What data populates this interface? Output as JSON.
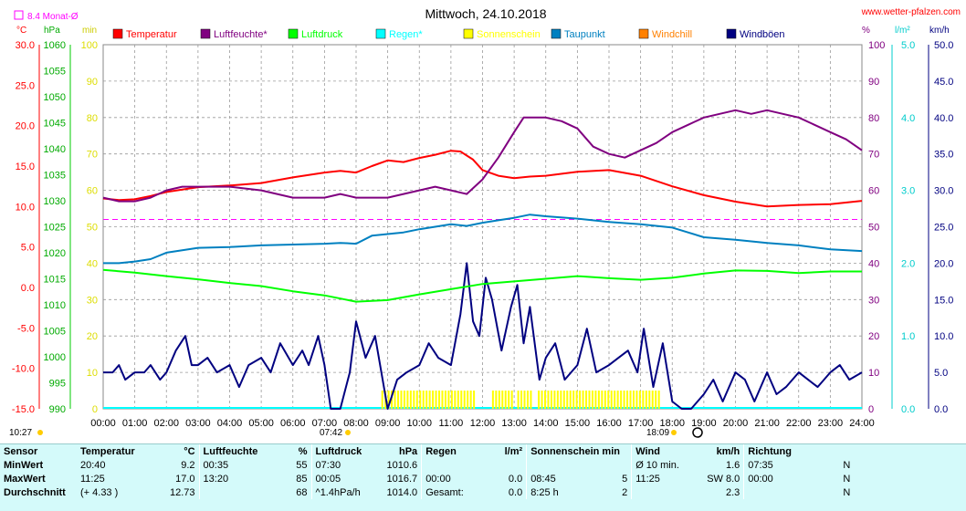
{
  "title": "Mittwoch, 24.10.2018",
  "website": "www.wetter-pfalzen.com",
  "avg_label": "8.4 Monat-Ø",
  "units": {
    "celsius": "°C",
    "hpa": "hPa",
    "min": "min",
    "percent": "%",
    "lm2": "l/m²",
    "kmh": "km/h"
  },
  "times": {
    "sunrise": "07:42",
    "sunset": "18:09",
    "first": "10:27"
  },
  "legend": [
    {
      "name": "Temperatur",
      "color": "#ff0000"
    },
    {
      "name": "Luftfeuchte*",
      "color": "#800080"
    },
    {
      "name": "Luftdruck",
      "color": "#00ff00"
    },
    {
      "name": "Regen*",
      "color": "#00ffff"
    },
    {
      "name": "Sonnenschein",
      "color": "#ffff00"
    },
    {
      "name": "Taupunkt",
      "color": "#0080c0"
    },
    {
      "name": "Windchill",
      "color": "#ff8000"
    },
    {
      "name": "Windböen",
      "color": "#000080"
    }
  ],
  "chart_data": {
    "type": "line",
    "title": "Mittwoch, 24.10.2018",
    "x_ticks": [
      "00:00",
      "01:00",
      "02:00",
      "03:00",
      "04:00",
      "05:00",
      "06:00",
      "07:00",
      "08:00",
      "09:00",
      "10:00",
      "11:00",
      "12:00",
      "13:00",
      "14:00",
      "15:00",
      "16:00",
      "17:00",
      "18:00",
      "19:00",
      "20:00",
      "21:00",
      "22:00",
      "23:00",
      "24:00"
    ],
    "axes": {
      "temperature": {
        "label": "°C",
        "range": [
          -15,
          30
        ],
        "ticks": [
          "30.0",
          "25.0",
          "20.0",
          "15.0",
          "10.0",
          "5.0",
          "0.0",
          "-5.0",
          "-10.0",
          "-15.0"
        ]
      },
      "pressure": {
        "label": "hPa",
        "range": [
          990,
          1060
        ],
        "ticks": [
          "1060",
          "1055",
          "1050",
          "1045",
          "1040",
          "1035",
          "1030",
          "1025",
          "1020",
          "1015",
          "1010",
          "1005",
          "1000",
          "995",
          "990"
        ]
      },
      "sunshine": {
        "label": "min",
        "range": [
          0,
          100
        ],
        "ticks": [
          "100",
          "90",
          "80",
          "70",
          "60",
          "50",
          "40",
          "30",
          "20",
          "10",
          "0"
        ]
      },
      "humidity": {
        "label": "%",
        "range": [
          0,
          100
        ],
        "ticks": [
          "100",
          "90",
          "80",
          "70",
          "60",
          "50",
          "40",
          "30",
          "20",
          "10",
          "0"
        ]
      },
      "rain": {
        "label": "l/m²",
        "range": [
          0,
          5
        ],
        "ticks": [
          "5.0",
          "4.0",
          "3.0",
          "2.0",
          "1.0",
          "0.0"
        ]
      },
      "wind": {
        "label": "km/h",
        "range": [
          0,
          50
        ],
        "ticks": [
          "50.0",
          "45.0",
          "40.0",
          "35.0",
          "30.0",
          "25.0",
          "20.0",
          "15.0",
          "10.0",
          "5.0",
          "0.0"
        ]
      }
    },
    "monthly_avg_temp": 8.4,
    "series": [
      {
        "name": "Temperatur",
        "color": "#ff0000",
        "axis": "temperature",
        "x": [
          0,
          0.5,
          1,
          1.5,
          2,
          3,
          4,
          5,
          6,
          7,
          7.5,
          8,
          8.5,
          9,
          9.5,
          10,
          10.5,
          11,
          11.3,
          11.7,
          12,
          12.5,
          13,
          13.5,
          14,
          15,
          16,
          17,
          18,
          19,
          20,
          21,
          22,
          23,
          24
        ],
        "y": [
          11.0,
          10.8,
          10.9,
          11.3,
          11.8,
          12.4,
          12.6,
          12.9,
          13.6,
          14.2,
          14.4,
          14.2,
          15.0,
          15.7,
          15.5,
          16.0,
          16.4,
          16.9,
          16.8,
          15.8,
          14.5,
          13.8,
          13.5,
          13.7,
          13.8,
          14.3,
          14.5,
          13.8,
          12.5,
          11.4,
          10.6,
          10.0,
          10.2,
          10.3,
          10.7
        ]
      },
      {
        "name": "Luftfeuchte*",
        "color": "#800080",
        "axis": "humidity",
        "x": [
          0,
          0.5,
          1,
          1.5,
          2,
          2.5,
          3,
          4,
          5,
          6,
          7,
          7.5,
          8,
          8.5,
          9,
          10,
          10.5,
          11,
          11.5,
          12,
          12.5,
          13,
          13.3,
          13.7,
          14,
          14.5,
          15,
          15.5,
          16,
          16.5,
          17,
          17.5,
          18,
          18.5,
          19,
          19.5,
          20,
          20.5,
          21,
          21.5,
          22,
          22.5,
          23,
          23.5,
          24
        ],
        "y": [
          58,
          57,
          57,
          58,
          60,
          61,
          61,
          61,
          60,
          58,
          58,
          59,
          58,
          58,
          58,
          60,
          61,
          60,
          59,
          63,
          69,
          76,
          80,
          80,
          80,
          79,
          77,
          72,
          70,
          69,
          71,
          73,
          76,
          78,
          80,
          81,
          82,
          81,
          82,
          81,
          80,
          78,
          76,
          74,
          71
        ]
      },
      {
        "name": "Luftdruck",
        "color": "#00ff00",
        "axis": "pressure",
        "x": [
          0,
          1,
          2,
          3,
          4,
          5,
          6,
          7,
          8,
          9,
          10,
          11,
          12,
          13,
          14,
          15,
          16,
          17,
          18,
          19,
          20,
          21,
          22,
          23,
          24
        ],
        "y": [
          1016.7,
          1016.2,
          1015.5,
          1014.9,
          1014.2,
          1013.6,
          1012.6,
          1011.8,
          1010.6,
          1010.9,
          1012.0,
          1013.0,
          1014.0,
          1014.5,
          1015.0,
          1015.5,
          1015.1,
          1014.8,
          1015.2,
          1016.0,
          1016.6,
          1016.5,
          1016.1,
          1016.4,
          1016.4
        ]
      },
      {
        "name": "Taupunkt",
        "color": "#0080c0",
        "axis": "temperature",
        "x": [
          0,
          0.5,
          1,
          1.5,
          2,
          3,
          4,
          5,
          6,
          7,
          7.5,
          8,
          8.5,
          9,
          9.5,
          10,
          10.5,
          11,
          11.5,
          12,
          12.5,
          13,
          13.5,
          14,
          15,
          16,
          17,
          18,
          19,
          20,
          21,
          22,
          23,
          24
        ],
        "y": [
          3.0,
          3.0,
          3.2,
          3.5,
          4.3,
          4.9,
          5.0,
          5.2,
          5.3,
          5.4,
          5.5,
          5.4,
          6.4,
          6.6,
          6.8,
          7.2,
          7.5,
          7.8,
          7.6,
          8.0,
          8.3,
          8.6,
          9.0,
          8.8,
          8.5,
          8.1,
          7.8,
          7.4,
          6.2,
          5.9,
          5.5,
          5.2,
          4.7,
          4.5
        ]
      }
    ],
    "windboeen": {
      "name": "Windböen",
      "color": "#000080",
      "axis": "wind",
      "x": [
        0,
        0.3,
        0.5,
        0.7,
        1,
        1.3,
        1.5,
        1.8,
        2,
        2.3,
        2.6,
        2.8,
        3,
        3.3,
        3.6,
        4,
        4.3,
        4.6,
        5,
        5.3,
        5.6,
        6,
        6.3,
        6.5,
        6.8,
        7,
        7.2,
        7.5,
        7.8,
        8,
        8.3,
        8.6,
        9,
        9.3,
        9.6,
        10,
        10.3,
        10.6,
        11,
        11.3,
        11.5,
        11.7,
        11.9,
        12.1,
        12.3,
        12.6,
        12.9,
        13.1,
        13.3,
        13.5,
        13.8,
        14,
        14.3,
        14.6,
        15,
        15.3,
        15.6,
        16,
        16.3,
        16.6,
        16.9,
        17.1,
        17.4,
        17.7,
        18,
        18.3,
        18.6,
        19,
        19.3,
        19.6,
        20,
        20.3,
        20.6,
        21,
        21.3,
        21.6,
        22,
        22.3,
        22.6,
        23,
        23.3,
        23.6,
        24
      ],
      "y": [
        5,
        5,
        6,
        4,
        5,
        5,
        6,
        4,
        5,
        8,
        10,
        6,
        6,
        7,
        5,
        6,
        3,
        6,
        7,
        5,
        9,
        6,
        8,
        6,
        10,
        6,
        0,
        0,
        5,
        12,
        7,
        10,
        0,
        4,
        5,
        6,
        9,
        7,
        6,
        13,
        20,
        12,
        10,
        18,
        15,
        8,
        14,
        17,
        9,
        14,
        4,
        7,
        9,
        4,
        6,
        11,
        5,
        6,
        7,
        8,
        5,
        11,
        3,
        9,
        1,
        0,
        0,
        2,
        4,
        1,
        5,
        4,
        1,
        5,
        2,
        3,
        5,
        4,
        3,
        5,
        6,
        4,
        5
      ]
    },
    "sunshine_blocks": [
      [
        8.8,
        11.7
      ],
      [
        12.3,
        12.9
      ],
      [
        13.1,
        13.55
      ],
      [
        13.75,
        17.65
      ]
    ]
  },
  "stats": {
    "headers": {
      "sensor": "Sensor",
      "temperatur": "Temperatur",
      "t_unit": "°C",
      "luftfeuchte": "Luftfeuchte",
      "lf_unit": "%",
      "luftdruck": "Luftdruck",
      "ld_unit": "hPa",
      "regen": "Regen",
      "r_unit": "l/m²",
      "sonne": "Sonnenschein min",
      "wind": "Wind",
      "w_unit": "km/h",
      "richtung": "Richtung"
    },
    "min": {
      "label": "MinWert",
      "t_time": "20:40",
      "t_val": "9.2",
      "lf_time": "00:35",
      "lf_val": "55",
      "ld_time": "07:30",
      "ld_val": "1010.6",
      "w_label": "Ø 10 min.",
      "w_val": "1.6",
      "r_time": "07:35",
      "r_dir": "N"
    },
    "max": {
      "label": "MaxWert",
      "t_time": "11:25",
      "t_val": "17.0",
      "lf_time": "13:20",
      "lf_val": "85",
      "ld_time": "00:05",
      "ld_val": "1016.7",
      "rg_time": "00:00",
      "rg_val": "0.0",
      "s_time": "08:45",
      "s_val": "5",
      "w_time": "11:25",
      "w_val": "SW 8.0",
      "r_time": "00:00",
      "r_dir": "N"
    },
    "avg": {
      "label": "Durchschnitt",
      "t_delta": "(+ 4.33 )",
      "t_val": "12.73",
      "lf_val": "68",
      "ld_trend": "^1.4hPa/h",
      "ld_val": "1014.0",
      "rg_label": "Gesamt:",
      "rg_val": "0.0",
      "s_dur": "8:25 h",
      "s_val": "2",
      "w_val": "2.3",
      "r_dir": "N"
    }
  }
}
